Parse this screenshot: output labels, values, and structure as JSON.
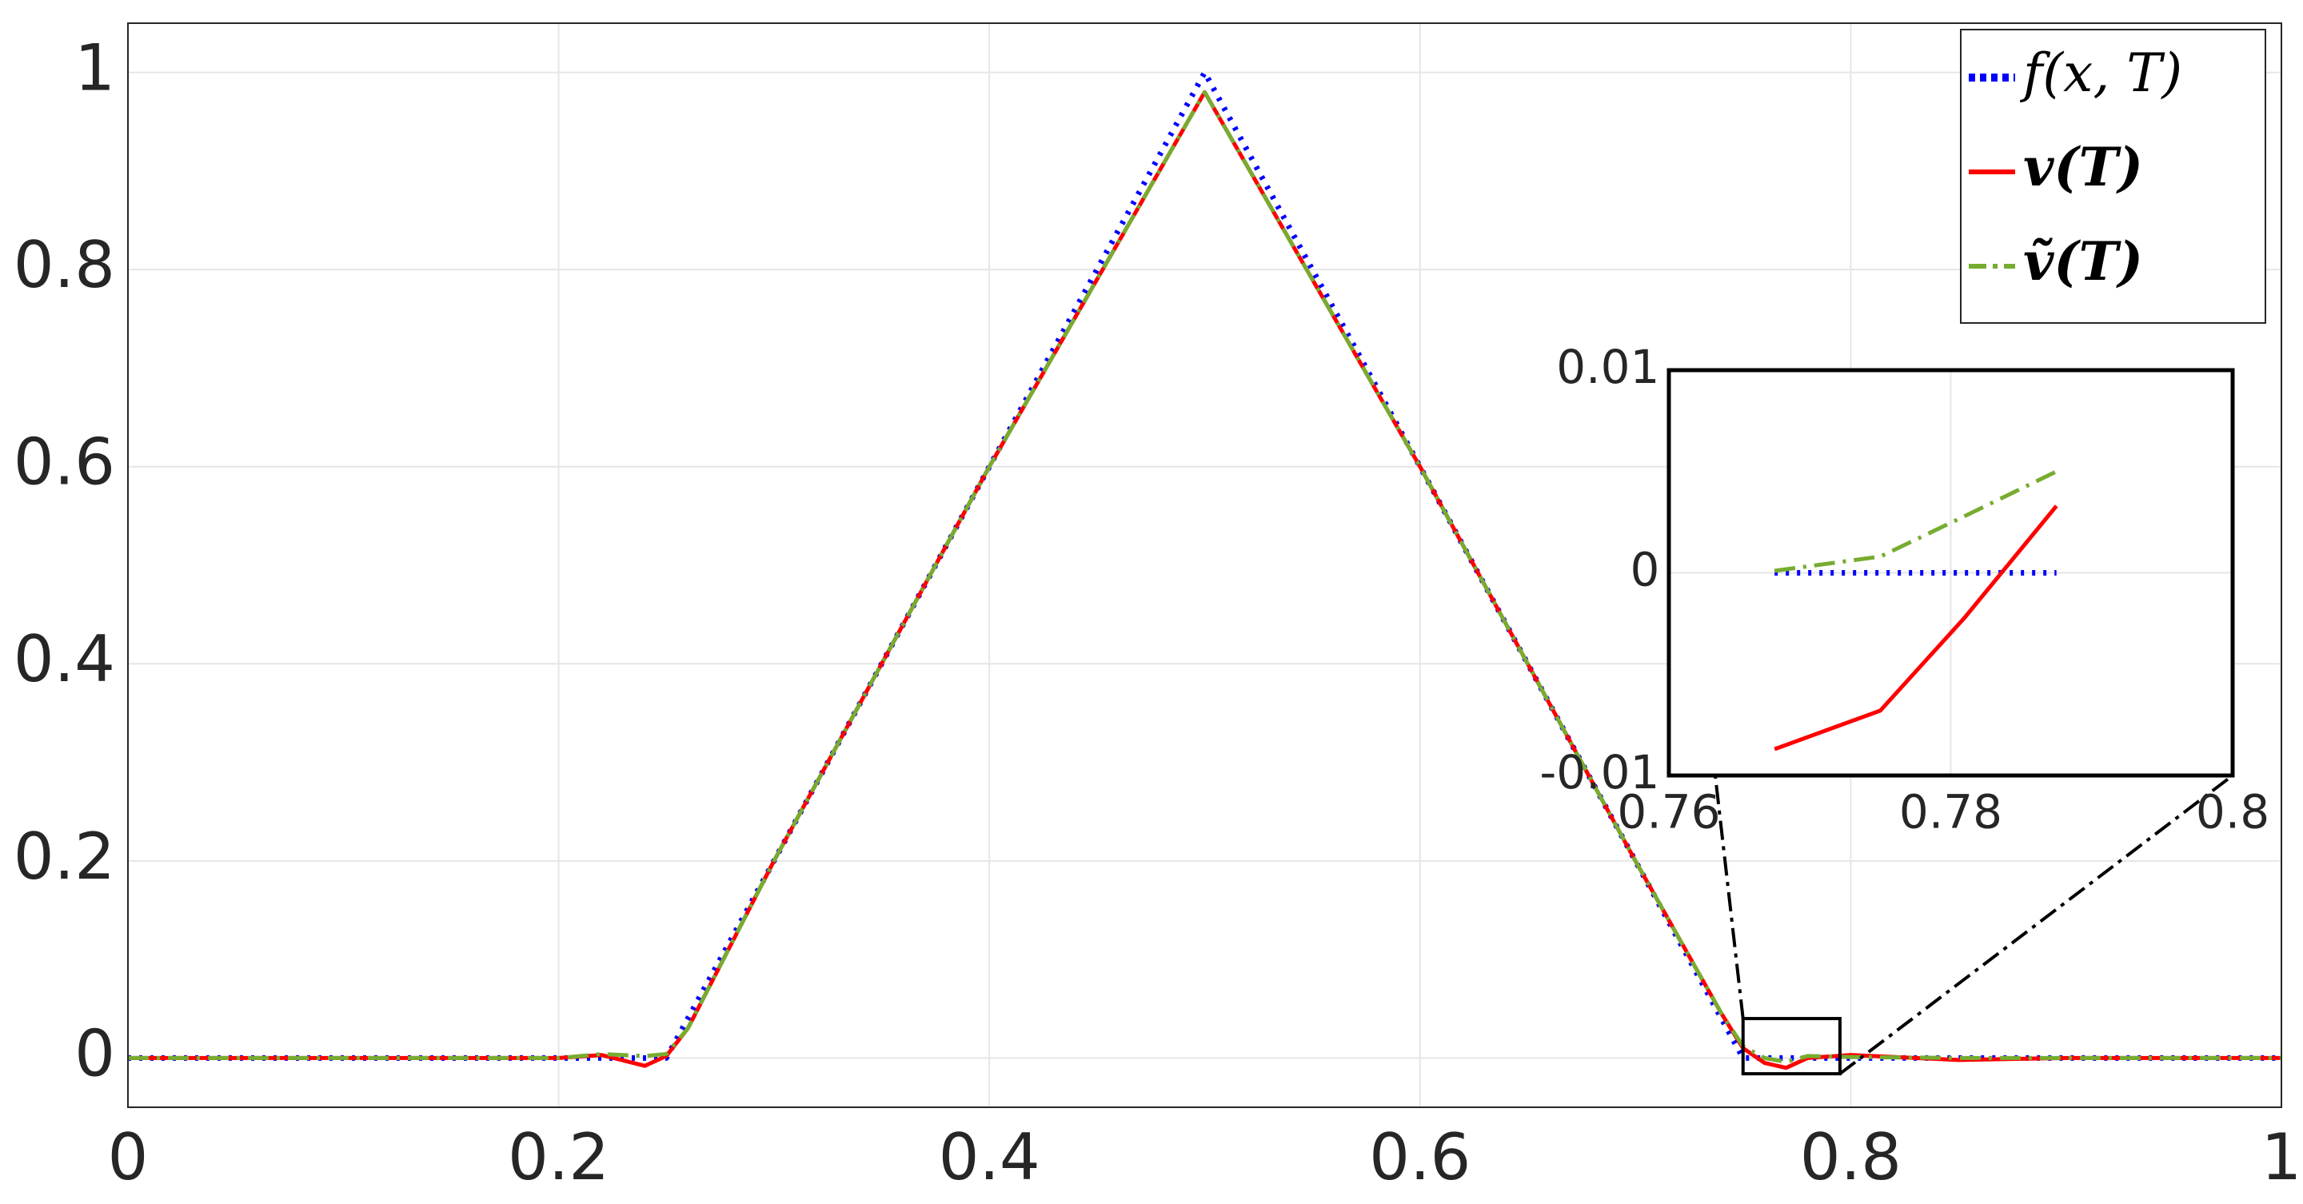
{
  "chart_data": [
    {
      "type": "line",
      "x": [
        0,
        0.2,
        0.22,
        0.24,
        0.25,
        0.26,
        0.3,
        0.4,
        0.5,
        0.6,
        0.7,
        0.74,
        0.75,
        0.76,
        0.77,
        0.78,
        0.8,
        0.85,
        0.9,
        1
      ],
      "series": [
        {
          "name": "f(x, T)",
          "color": "#0000ff",
          "style": "dotted",
          "values": [
            0,
            0,
            0,
            0,
            0,
            0.04,
            0.2,
            0.6,
            1,
            0.6,
            0.2,
            0.04,
            0,
            0,
            0,
            0,
            0,
            0,
            0,
            0
          ]
        },
        {
          "name": "v(T)",
          "color": "#ff0000",
          "style": "solid",
          "values": [
            0,
            0,
            0.003,
            -0.008,
            0.002,
            0.03,
            0.2,
            0.6,
            0.98,
            0.6,
            0.2,
            0.045,
            0.01,
            -0.005,
            -0.01,
            0,
            0.003,
            -0.002,
            0,
            0
          ]
        },
        {
          "name": "ṽ(T)",
          "color": "#77ac30",
          "style": "dashdot",
          "values": [
            0,
            0,
            0.004,
            0.002,
            0.004,
            0.03,
            0.2,
            0.6,
            0.98,
            0.6,
            0.2,
            0.045,
            0.012,
            0,
            -0.004,
            0.002,
            0.001,
            0,
            0,
            0
          ]
        }
      ],
      "xlim": [
        0,
        1
      ],
      "ylim": [
        -0.05,
        1.05
      ],
      "xticks": [
        0,
        0.2,
        0.4,
        0.6,
        0.8,
        1
      ],
      "yticks": [
        0,
        0.2,
        0.4,
        0.6,
        0.8,
        1
      ],
      "grid": true,
      "legend": "upper right",
      "zoom_box": {
        "xlim": [
          0.75,
          0.795
        ],
        "ylim": [
          -0.016,
          0.04
        ]
      }
    },
    {
      "type": "line",
      "series": [
        {
          "color": "#0000ff",
          "style": "dotted",
          "x": [
            0.7675,
            0.775,
            0.781,
            0.7875
          ],
          "values": [
            0,
            0,
            0,
            0
          ]
        },
        {
          "color": "#ff0000",
          "style": "solid",
          "x": [
            0.7675,
            0.775,
            0.781,
            0.7875
          ],
          "values": [
            -0.0087,
            -0.0068,
            -0.0022,
            0.0033
          ]
        },
        {
          "color": "#77ac30",
          "style": "dashdot",
          "x": [
            0.7675,
            0.775,
            0.781,
            0.7875
          ],
          "values": [
            0.0001,
            0.0008,
            0.0028,
            0.005
          ]
        }
      ],
      "xlim": [
        0.76,
        0.8
      ],
      "ylim": [
        -0.01,
        0.01
      ],
      "xticks": [
        0.76,
        0.78,
        0.8
      ],
      "yticks": [
        -0.01,
        0,
        0.01
      ],
      "grid": true
    }
  ]
}
